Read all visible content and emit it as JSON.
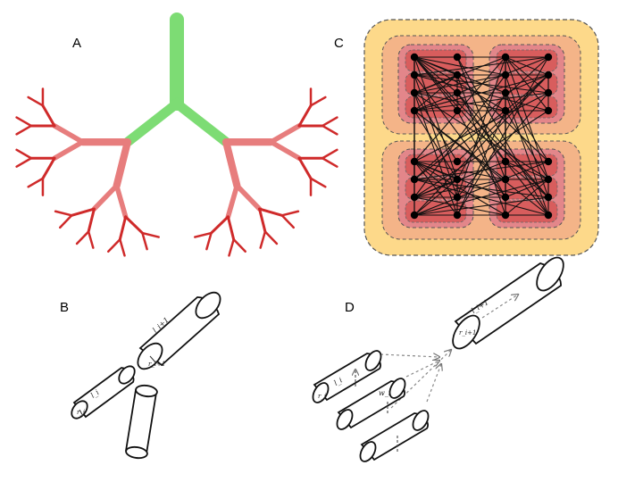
{
  "panels": {
    "a": {
      "letter": "A"
    },
    "b": {
      "letter": "B",
      "labels": {
        "li1": "l_i+1",
        "ri1": "r_i+1",
        "li": "l_i",
        "ri": "r_i"
      }
    },
    "c": {
      "letter": "C"
    },
    "d": {
      "letter": "D",
      "labels": {
        "li1": "l_i+1",
        "ri1": "r_i+1",
        "li": "l_i",
        "ri": "r_i",
        "wi": "w_i"
      }
    }
  },
  "colors": {
    "trunk_green": "#7ddc74",
    "branch_pink": "#e77d7d",
    "tip_red": "#cf2a2a",
    "outer_box": "#fdd98a",
    "mid_box": "#f4b488",
    "cluster": "#e3868a",
    "inner": "#d85d5d",
    "edge": "#111111"
  }
}
